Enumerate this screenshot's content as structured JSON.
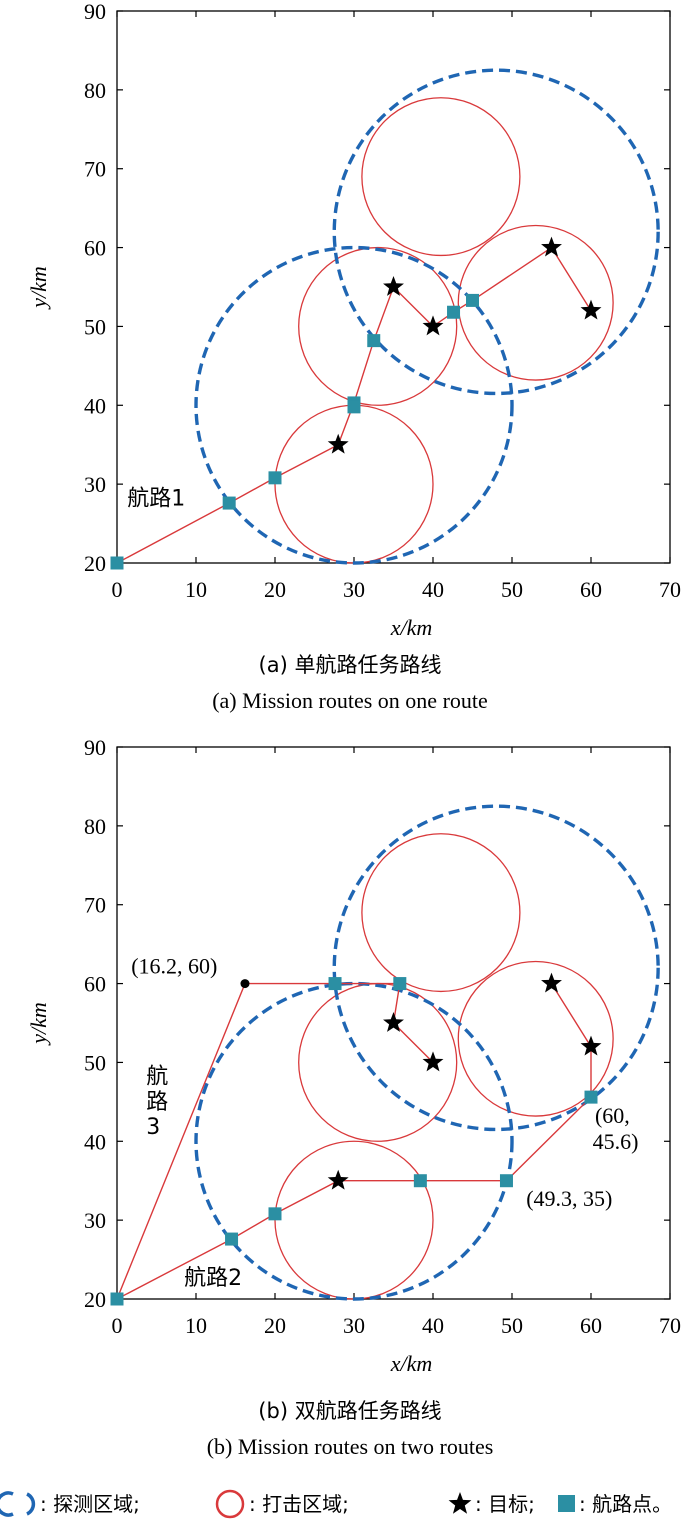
{
  "colors": {
    "detection": "#1f66b3",
    "strike": "#d9393b",
    "route": "#d9393b",
    "waypoint": "#2b8fa3",
    "target": "#000000",
    "axis": "#000000"
  },
  "chart_data": [
    {
      "type": "scatter",
      "title": "",
      "xlabel": "x/km",
      "ylabel": "y/km",
      "xlim": [
        0,
        70
      ],
      "ylim": [
        20,
        90
      ],
      "xticks": [
        "0",
        "10",
        "20",
        "30",
        "40",
        "50",
        "60",
        "70"
      ],
      "yticks": [
        "20",
        "30",
        "40",
        "50",
        "60",
        "70",
        "80",
        "90"
      ],
      "caption_cn": "(a) 单航路任务路线",
      "caption_en": "(a) Mission routes on one route",
      "detection_areas": [
        {
          "cx": 30,
          "cy": 40,
          "r": 20
        },
        {
          "cx": 48,
          "cy": 62,
          "r": 20.5
        }
      ],
      "strike_areas": [
        {
          "cx": 30,
          "cy": 30,
          "r": 10
        },
        {
          "cx": 33,
          "cy": 50,
          "r": 10
        },
        {
          "cx": 41,
          "cy": 69,
          "r": 10
        },
        {
          "cx": 53,
          "cy": 53,
          "r": 9.8
        }
      ],
      "targets": [
        {
          "x": 28,
          "y": 35
        },
        {
          "x": 35,
          "y": 55
        },
        {
          "x": 40,
          "y": 50
        },
        {
          "x": 55,
          "y": 60
        },
        {
          "x": 60,
          "y": 52
        }
      ],
      "waypoints": [
        {
          "x": 0,
          "y": 20
        },
        {
          "x": 14.2,
          "y": 27.6
        },
        {
          "x": 20,
          "y": 30.8
        },
        {
          "x": 30,
          "y": 40.3
        },
        {
          "x": 30,
          "y": 39.8
        },
        {
          "x": 32.5,
          "y": 48.2
        },
        {
          "x": 42.6,
          "y": 51.8
        },
        {
          "x": 45,
          "y": 53.3
        }
      ],
      "routes": [
        {
          "name": "航路1",
          "points": [
            [
              0,
              20
            ],
            [
              14.2,
              27.6
            ],
            [
              20,
              30.8
            ],
            [
              28,
              35
            ],
            [
              30,
              40.3
            ],
            [
              32.5,
              48.2
            ],
            [
              35,
              55
            ],
            [
              40,
              50
            ],
            [
              42.6,
              51.8
            ],
            [
              45,
              53.3
            ],
            [
              55,
              60
            ],
            [
              60,
              52
            ]
          ]
        }
      ],
      "route_labels": [
        {
          "text": "航路1",
          "x": 1.3,
          "y": 27.3
        }
      ],
      "annotations": []
    },
    {
      "type": "scatter",
      "title": "",
      "xlabel": "x/km",
      "ylabel": "y/km",
      "xlim": [
        0,
        70
      ],
      "ylim": [
        20,
        90
      ],
      "xticks": [
        "0",
        "10",
        "20",
        "30",
        "40",
        "50",
        "60",
        "70"
      ],
      "yticks": [
        "20",
        "30",
        "40",
        "50",
        "60",
        "70",
        "80",
        "90"
      ],
      "caption_cn": "(b) 双航路任务路线",
      "caption_en": "(b) Mission routes on two routes",
      "detection_areas": [
        {
          "cx": 30,
          "cy": 40,
          "r": 20
        },
        {
          "cx": 48,
          "cy": 62,
          "r": 20.5
        }
      ],
      "strike_areas": [
        {
          "cx": 30,
          "cy": 30,
          "r": 10
        },
        {
          "cx": 33,
          "cy": 50,
          "r": 10
        },
        {
          "cx": 41,
          "cy": 69,
          "r": 10
        },
        {
          "cx": 53,
          "cy": 53,
          "r": 9.8
        }
      ],
      "targets": [
        {
          "x": 28,
          "y": 35
        },
        {
          "x": 35,
          "y": 55
        },
        {
          "x": 40,
          "y": 50
        },
        {
          "x": 55,
          "y": 60
        },
        {
          "x": 60,
          "y": 52
        }
      ],
      "waypoints": [
        {
          "x": 0,
          "y": 20
        },
        {
          "x": 14.5,
          "y": 27.6
        },
        {
          "x": 20,
          "y": 30.8
        },
        {
          "x": 38.4,
          "y": 35
        },
        {
          "x": 49.3,
          "y": 35
        },
        {
          "x": 60,
          "y": 45.6
        },
        {
          "x": 27.6,
          "y": 60
        },
        {
          "x": 35.8,
          "y": 60
        }
      ],
      "turn_points": [
        {
          "x": 16.2,
          "y": 60
        }
      ],
      "routes": [
        {
          "name": "航路2",
          "points": [
            [
              0,
              20
            ],
            [
              14.5,
              27.6
            ],
            [
              20,
              30.8
            ],
            [
              28,
              35
            ],
            [
              38.4,
              35
            ],
            [
              49.3,
              35
            ],
            [
              60,
              45.6
            ],
            [
              60,
              52
            ],
            [
              55,
              60
            ]
          ]
        },
        {
          "name": "航路3",
          "points": [
            [
              0,
              20
            ],
            [
              16.2,
              60
            ],
            [
              27.6,
              60
            ],
            [
              35.8,
              60
            ],
            [
              35,
              55
            ],
            [
              40,
              50
            ]
          ]
        }
      ],
      "route_labels": [
        {
          "text": "航路2",
          "x": 8.5,
          "y": 21.8
        },
        {
          "text": "航",
          "x": 3.7,
          "y": 47.3
        },
        {
          "text": "路",
          "x": 3.7,
          "y": 44.1
        },
        {
          "text": "3",
          "x": 3.7,
          "y": 40.9
        }
      ],
      "annotations": [
        {
          "text": "(16.2, 60)",
          "x": 1.8,
          "y": 61.3
        },
        {
          "text": "(60,",
          "x": 60.5,
          "y": 42.3
        },
        {
          "text": "45.6)",
          "x": 60.2,
          "y": 39.0
        },
        {
          "text": "(49.3, 35)",
          "x": 51.8,
          "y": 31.8
        }
      ]
    }
  ],
  "legend": [
    {
      "icon": "detection-area-icon",
      "label": ": 探测区域;"
    },
    {
      "icon": "strike-area-icon",
      "label": ": 打击区域;"
    },
    {
      "icon": "star-icon",
      "label": ": 目标;"
    },
    {
      "icon": "waypoint-icon",
      "label": ": 航路点。"
    }
  ]
}
